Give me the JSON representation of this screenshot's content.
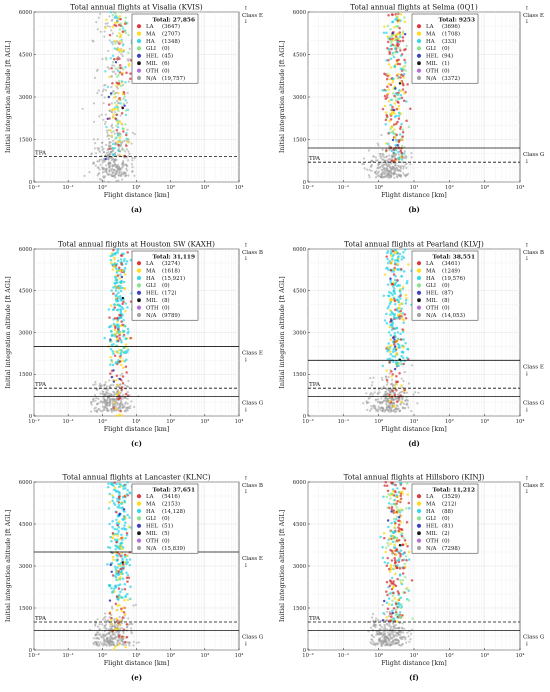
{
  "colors": {
    "LA": "#d62728",
    "MA": "#ffd700",
    "HA": "#22d3e6",
    "GLI": "#7ee07e",
    "HEL": "#2b2fb8",
    "MIL": "#000000",
    "OTH": "#b05fd0",
    "NA": "#9a9a9a"
  },
  "common": {
    "xlabel": "Flight distance [km]",
    "ylabel": "Initial integration altitude [ft AGL]",
    "xticks": [
      "10⁻²",
      "10⁻¹",
      "10⁰",
      "10¹",
      "10²",
      "10³",
      "10⁴"
    ],
    "yticks": [
      "0",
      "1500",
      "3000",
      "4500",
      "6000"
    ],
    "tpa_label": "TPA",
    "legend_labels": [
      "LA",
      "MA",
      "HA",
      "GLI",
      "HEL",
      "MIL",
      "OTH",
      "N/A"
    ],
    "class_arrow_up": "↑",
    "class_arrow_down": "↓"
  },
  "chart_data": [
    {
      "type": "scatter",
      "panel_label": "(a)",
      "title": "Total annual flights at Visalia (KVIS)",
      "total_label": "Total: 27,856",
      "series": [
        {
          "name": "LA",
          "count": "(3647)"
        },
        {
          "name": "MA",
          "count": "(2707)"
        },
        {
          "name": "HA",
          "count": "(1348)"
        },
        {
          "name": "GLI",
          "count": "(0)"
        },
        {
          "name": "HEL",
          "count": "(45)"
        },
        {
          "name": "MIL",
          "count": "(6)"
        },
        {
          "name": "OTH",
          "count": "(0)"
        },
        {
          "name": "N/A",
          "count": "(19,757)"
        }
      ],
      "dominant": "NA",
      "xlim": [
        0.01,
        10000
      ],
      "xscale": "log",
      "ylim": [
        0,
        6000
      ],
      "tpa_altitude": 900,
      "class_lines": [],
      "class_labels": [
        {
          "text": "Class E",
          "position": "top",
          "altitude": 6000
        }
      ]
    },
    {
      "type": "scatter",
      "panel_label": "(b)",
      "title": "Total annual flights at Selma (0Q1)",
      "total_label": "Total: 9253",
      "series": [
        {
          "name": "LA",
          "count": "(3696)"
        },
        {
          "name": "MA",
          "count": "(1708)"
        },
        {
          "name": "HA",
          "count": "(333)"
        },
        {
          "name": "GLI",
          "count": "(0)"
        },
        {
          "name": "HEL",
          "count": "(94)"
        },
        {
          "name": "MIL",
          "count": "(1)"
        },
        {
          "name": "OTH",
          "count": "(0)"
        },
        {
          "name": "N/A",
          "count": "(3372)"
        }
      ],
      "dominant": "LA",
      "xlim": [
        0.01,
        10000
      ],
      "xscale": "log",
      "ylim": [
        0,
        6000
      ],
      "tpa_altitude": 700,
      "class_lines": [
        1200
      ],
      "class_labels": [
        {
          "text": "Class E",
          "position": "top",
          "altitude": 6000
        },
        {
          "text": "Class G",
          "position": "bottom",
          "altitude": 1200
        }
      ]
    },
    {
      "type": "scatter",
      "panel_label": "(c)",
      "title": "Total annual flights at Houston SW (KAXH)",
      "total_label": "Total: 31,119",
      "series": [
        {
          "name": "LA",
          "count": "(3274)"
        },
        {
          "name": "MA",
          "count": "(1618)"
        },
        {
          "name": "HA",
          "count": "(15,921)"
        },
        {
          "name": "GLI",
          "count": "(0)"
        },
        {
          "name": "HEL",
          "count": "(172)"
        },
        {
          "name": "MIL",
          "count": "(8)"
        },
        {
          "name": "OTH",
          "count": "(0)"
        },
        {
          "name": "N/A",
          "count": "(9789)"
        }
      ],
      "dominant": "HA",
      "xlim": [
        0.01,
        10000
      ],
      "xscale": "log",
      "ylim": [
        0,
        6000
      ],
      "tpa_altitude": 1000,
      "class_lines": [
        2500,
        700
      ],
      "class_labels": [
        {
          "text": "Class B",
          "position": "top",
          "altitude": 6000
        },
        {
          "text": "Class E",
          "position": "bottom",
          "altitude": 2500
        },
        {
          "text": "Class G",
          "position": "bottom",
          "altitude": 700
        }
      ]
    },
    {
      "type": "scatter",
      "panel_label": "(d)",
      "title": "Total annual flights at Pearland (KLVJ)",
      "total_label": "Total: 38,551",
      "series": [
        {
          "name": "LA",
          "count": "(3461)"
        },
        {
          "name": "MA",
          "count": "(1249)"
        },
        {
          "name": "HA",
          "count": "(19,576)"
        },
        {
          "name": "GLI",
          "count": "(0)"
        },
        {
          "name": "HEL",
          "count": "(87)"
        },
        {
          "name": "MIL",
          "count": "(8)"
        },
        {
          "name": "OTH",
          "count": "(0)"
        },
        {
          "name": "N/A",
          "count": "(14,053)"
        }
      ],
      "dominant": "HA",
      "xlim": [
        0.01,
        10000
      ],
      "xscale": "log",
      "ylim": [
        0,
        6000
      ],
      "tpa_altitude": 1000,
      "class_lines": [
        2000,
        700
      ],
      "class_labels": [
        {
          "text": "Class B",
          "position": "top",
          "altitude": 6000
        },
        {
          "text": "Class E",
          "position": "bottom",
          "altitude": 2000
        },
        {
          "text": "Class G",
          "position": "bottom",
          "altitude": 700
        }
      ]
    },
    {
      "type": "scatter",
      "panel_label": "(e)",
      "title": "Total annual flights at Lancaster (KLNC)",
      "total_label": "Total: 37,651",
      "series": [
        {
          "name": "LA",
          "count": "(5416)"
        },
        {
          "name": "MA",
          "count": "(2153)"
        },
        {
          "name": "HA",
          "count": "(14,128)"
        },
        {
          "name": "GLI",
          "count": "(0)"
        },
        {
          "name": "HEL",
          "count": "(51)"
        },
        {
          "name": "MIL",
          "count": "(5)"
        },
        {
          "name": "OTH",
          "count": "(0)"
        },
        {
          "name": "N/A",
          "count": "(15,839)"
        }
      ],
      "dominant": "HA",
      "xlim": [
        0.01,
        10000
      ],
      "xscale": "log",
      "ylim": [
        0,
        6000
      ],
      "tpa_altitude": 1000,
      "class_lines": [
        3500,
        700
      ],
      "class_labels": [
        {
          "text": "Class B",
          "position": "top",
          "altitude": 6000
        },
        {
          "text": "Class E",
          "position": "bottom",
          "altitude": 3500
        },
        {
          "text": "Class G",
          "position": "bottom",
          "altitude": 700
        }
      ]
    },
    {
      "type": "scatter",
      "panel_label": "(f)",
      "title": "Total annual flights at Hillsboro (KINJ)",
      "total_label": "Total: 11,212",
      "series": [
        {
          "name": "LA",
          "count": "(3529)"
        },
        {
          "name": "MA",
          "count": "(212)"
        },
        {
          "name": "HA",
          "count": "(88)"
        },
        {
          "name": "GLI",
          "count": "(0)"
        },
        {
          "name": "HEL",
          "count": "(81)"
        },
        {
          "name": "MIL",
          "count": "(2)"
        },
        {
          "name": "OTH",
          "count": "(0)"
        },
        {
          "name": "N/A",
          "count": "(7298)"
        }
      ],
      "dominant": "LA",
      "xlim": [
        0.01,
        10000
      ],
      "xscale": "log",
      "ylim": [
        0,
        6000
      ],
      "tpa_altitude": 1000,
      "class_lines": [
        700
      ],
      "class_labels": [
        {
          "text": "Class E",
          "position": "top",
          "altitude": 6000
        },
        {
          "text": "Class G",
          "position": "bottom",
          "altitude": 700
        }
      ]
    }
  ]
}
